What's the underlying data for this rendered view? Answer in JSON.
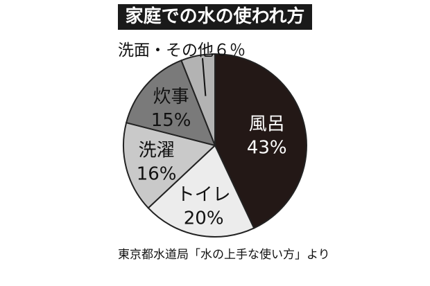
{
  "chart_data": {
    "type": "pie",
    "title": "家庭での水の使われ方",
    "slices": [
      {
        "label": "風呂",
        "value": 43,
        "value_label": "43%",
        "color": "#231816",
        "text_color": "#ffffff"
      },
      {
        "label": "トイレ",
        "value": 20,
        "value_label": "20%",
        "color": "#ececec",
        "text_color": "#111111"
      },
      {
        "label": "洗濯",
        "value": 16,
        "value_label": "16%",
        "color": "#c9c9c9",
        "text_color": "#111111"
      },
      {
        "label": "炊事",
        "value": 15,
        "value_label": "15%",
        "color": "#7a7a7a",
        "text_color": "#111111"
      },
      {
        "label": "洗面・その他",
        "value": 6,
        "value_label": "6％",
        "color": "#b3b3b3",
        "text_color": "#111111"
      }
    ],
    "callout_text": "洗面・その他６％",
    "source": "東京都水道局「水の上手な使い方」より"
  }
}
